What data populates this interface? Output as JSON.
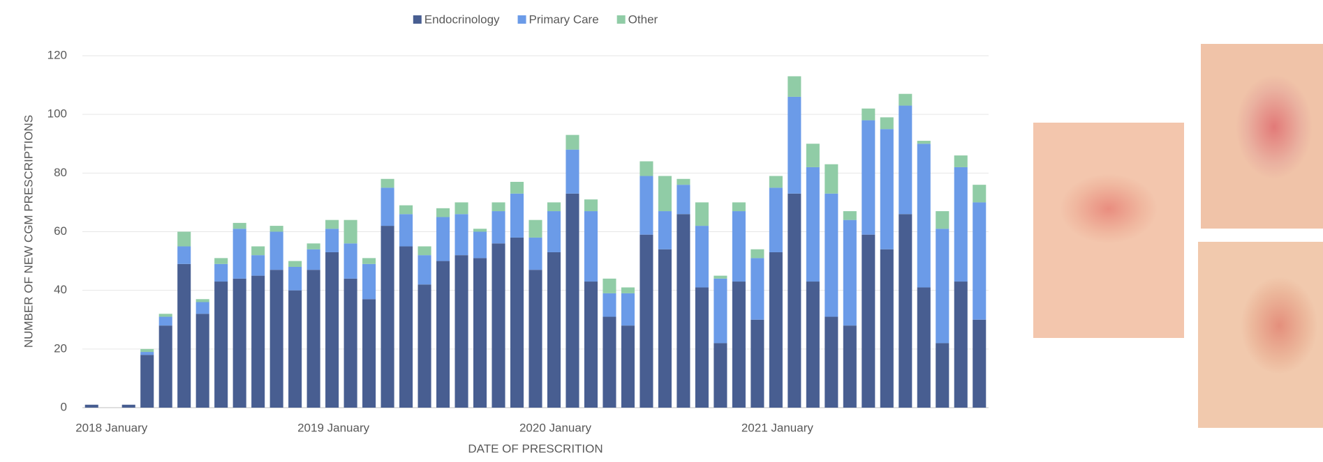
{
  "chart_data": {
    "type": "bar",
    "stacked": true,
    "categories": [
      null,
      "2018 January",
      null,
      null,
      null,
      null,
      null,
      null,
      null,
      null,
      null,
      null,
      null,
      "2019 January",
      null,
      null,
      null,
      null,
      null,
      null,
      null,
      null,
      null,
      null,
      null,
      "2020 January",
      null,
      null,
      null,
      null,
      null,
      null,
      null,
      null,
      null,
      null,
      null,
      "2021 January",
      null,
      null,
      null,
      null,
      null,
      null,
      null,
      null,
      null,
      null,
      null
    ],
    "series": [
      {
        "name": "Endocrinology",
        "color": "#485e91",
        "values": [
          1,
          0,
          1,
          18,
          28,
          49,
          32,
          43,
          44,
          45,
          47,
          40,
          47,
          53,
          44,
          37,
          62,
          55,
          42,
          50,
          52,
          51,
          56,
          58,
          47,
          53,
          73,
          43,
          31,
          28,
          59,
          54,
          66,
          41,
          22,
          43,
          30,
          53,
          73,
          43,
          31,
          28,
          59,
          54,
          66,
          41,
          22,
          43,
          30
        ]
      },
      {
        "name": "Primary Care",
        "color": "#6b9be8",
        "values": [
          0,
          0,
          0,
          1,
          3,
          6,
          4,
          6,
          17,
          7,
          13,
          8,
          7,
          8,
          12,
          12,
          13,
          11,
          10,
          15,
          14,
          9,
          11,
          15,
          11,
          14,
          15,
          24,
          8,
          11,
          20,
          13,
          10,
          21,
          22,
          24,
          21,
          22,
          33,
          39,
          42,
          36,
          39,
          41,
          37,
          49,
          39,
          39,
          40
        ]
      },
      {
        "name": "Other",
        "color": "#90cca6",
        "values": [
          0,
          0,
          0,
          1,
          1,
          5,
          1,
          2,
          2,
          3,
          2,
          2,
          2,
          3,
          8,
          2,
          3,
          3,
          3,
          3,
          4,
          1,
          3,
          4,
          6,
          3,
          5,
          4,
          5,
          2,
          5,
          12,
          2,
          8,
          1,
          3,
          3,
          4,
          7,
          8,
          10,
          3,
          4,
          4,
          4,
          1,
          6,
          4,
          6
        ]
      }
    ],
    "ylim": [
      0,
      120
    ],
    "yticks": [
      0,
      20,
      40,
      60,
      80,
      100,
      120
    ],
    "grid": true,
    "xlabel": "DATE OF PRESCRITION",
    "ylabel": "NUMBER OF NEW CGM PRESCRIPTIONS",
    "legend": "top"
  }
}
